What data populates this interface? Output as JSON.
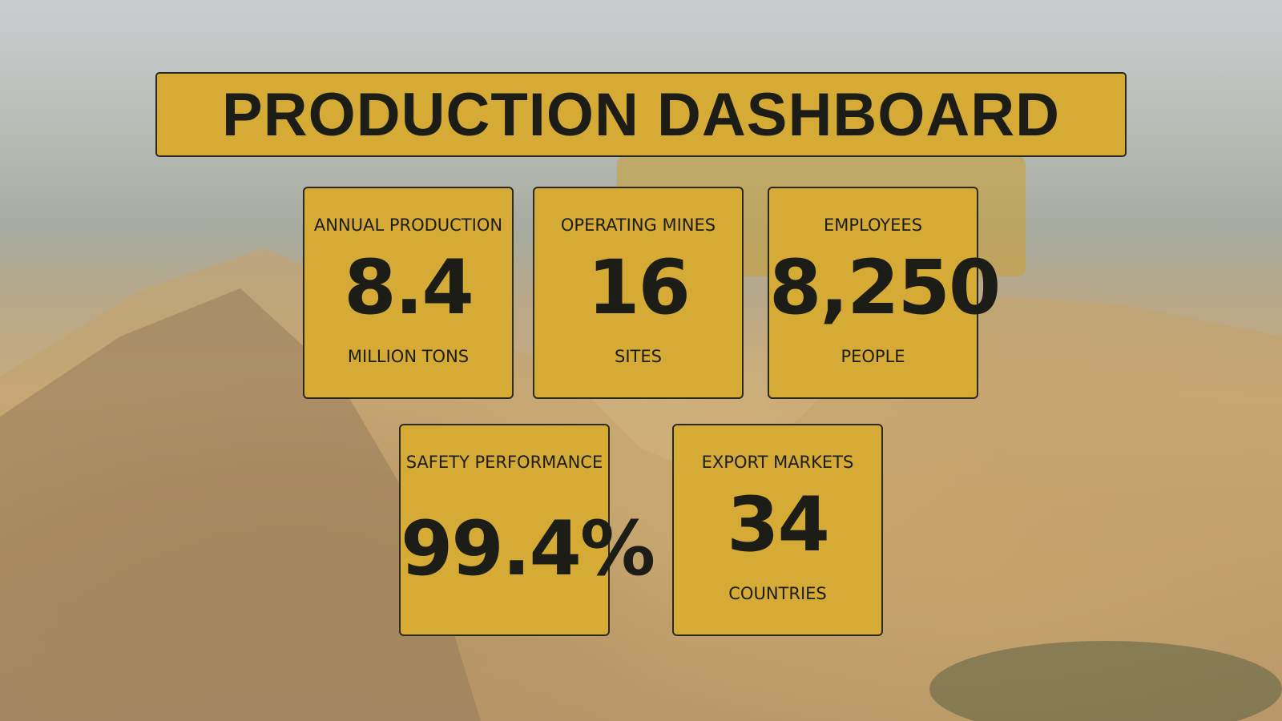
{
  "title": "PRODUCTION DASHBOARD",
  "cards": [
    {
      "label": "ANNUAL PRODUCTION",
      "value": "8.4",
      "unit": "MILLION TONS"
    },
    {
      "label": "OPERATING MINES",
      "value": "16",
      "unit": "SITES"
    },
    {
      "label": "EMPLOYEES",
      "value": "8,250",
      "unit": "PEOPLE"
    },
    {
      "label": "SAFETY PERFORMANCE",
      "value": "99.4%"
    },
    {
      "label": "EXPORT MARKETS",
      "value": "34",
      "unit": "COUNTRIES"
    }
  ]
}
